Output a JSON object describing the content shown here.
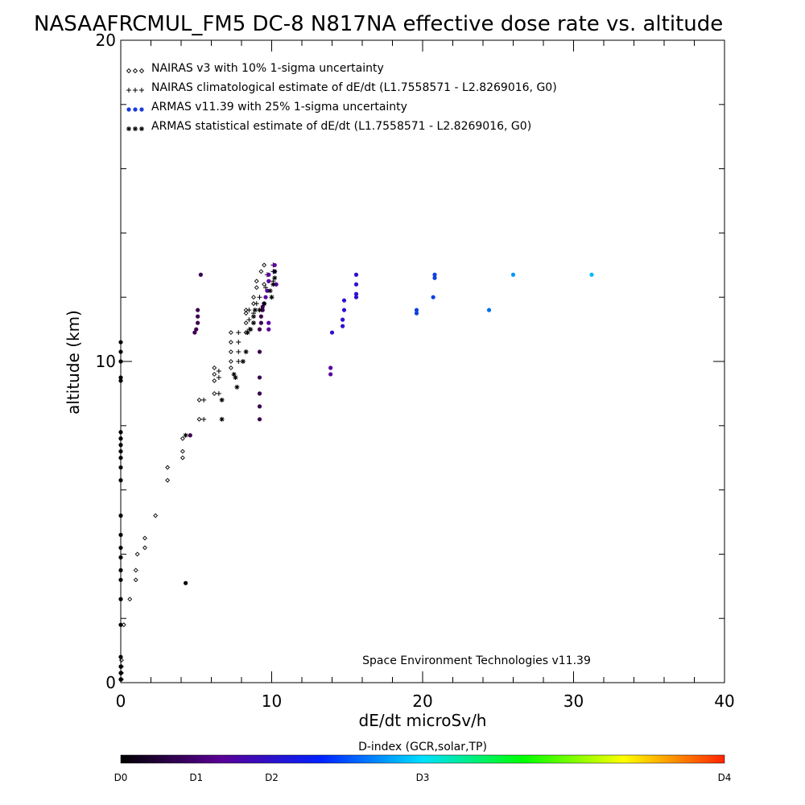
{
  "chart_data": {
    "type": "scatter",
    "title": "NASAAFRCMUL_FM5 DC-8   N817NA effective dose rate vs. altitude",
    "xlabel": "dE/dt microSv/h",
    "ylabel": "altitude (km)",
    "xlim": [
      0,
      40
    ],
    "ylim": [
      0,
      20
    ],
    "x_ticks": [
      "0",
      "10",
      "20",
      "30",
      "40"
    ],
    "y_ticks": [
      "0",
      "10",
      "20"
    ],
    "grid": false,
    "legend_position": "top-left",
    "legend": [
      {
        "marker": "diamond",
        "color": "#000000",
        "label": "NAIRAS v3 with 10% 1-sigma uncertainty"
      },
      {
        "marker": "plus",
        "color": "#000000",
        "label": "NAIRAS climatological estimate of dE/dt (L1.7558571 - L2.8269016, G0)"
      },
      {
        "marker": "dot",
        "color": "#1a3ad8",
        "label": "ARMAS v11.39 with 25% 1-sigma uncertainty"
      },
      {
        "marker": "asterisk",
        "color": "#000000",
        "label": "ARMAS statistical estimate of dE/dt (L1.7558571 - L2.8269016, G0)"
      }
    ],
    "annotation": "Space Environment Technologies v11.39",
    "colorbar": {
      "title": "D-index (GCR,solar,TP)",
      "labels": [
        {
          "text": "D0",
          "pos": 0.0
        },
        {
          "text": "D1",
          "pos": 0.125
        },
        {
          "text": "D2",
          "pos": 0.25
        },
        {
          "text": "D3",
          "pos": 0.5
        },
        {
          "text": "D4",
          "pos": 1.0
        }
      ],
      "stops": [
        "#000000",
        "#5a0096",
        "#0022ff",
        "#00e0ff",
        "#00ff00",
        "#ffff00",
        "#ff2200"
      ]
    },
    "series": [
      {
        "name": "NAIRAS v3 with 10% 1-sigma uncertainty",
        "marker": "diamond",
        "points": [
          [
            0.05,
            0.1
          ],
          [
            0.05,
            0.3
          ],
          [
            0.05,
            0.5
          ],
          [
            0.05,
            0.7
          ],
          [
            0.2,
            1.8
          ],
          [
            0.6,
            2.6
          ],
          [
            1.0,
            3.2
          ],
          [
            1.0,
            3.5
          ],
          [
            1.1,
            4.0
          ],
          [
            1.6,
            4.2
          ],
          [
            1.6,
            4.5
          ],
          [
            2.3,
            5.2
          ],
          [
            3.1,
            6.3
          ],
          [
            3.1,
            6.7
          ],
          [
            4.1,
            7.0
          ],
          [
            4.1,
            7.2
          ],
          [
            4.1,
            7.6
          ],
          [
            5.2,
            8.2
          ],
          [
            5.2,
            8.8
          ],
          [
            6.2,
            9.0
          ],
          [
            6.2,
            9.4
          ],
          [
            6.2,
            9.6
          ],
          [
            6.2,
            9.8
          ],
          [
            7.3,
            9.8
          ],
          [
            7.3,
            10.0
          ],
          [
            7.3,
            10.3
          ],
          [
            7.3,
            10.6
          ],
          [
            7.3,
            10.9
          ],
          [
            8.3,
            10.9
          ],
          [
            8.3,
            11.2
          ],
          [
            8.3,
            11.5
          ],
          [
            8.3,
            11.6
          ],
          [
            8.8,
            11.8
          ],
          [
            8.8,
            12.0
          ],
          [
            9.0,
            12.3
          ],
          [
            9.0,
            12.5
          ],
          [
            9.3,
            12.8
          ],
          [
            9.5,
            13.0
          ],
          [
            9.5,
            12.4
          ]
        ]
      },
      {
        "name": "NAIRAS climatological estimate of dE/dt (L1.7558571 - L2.8269016, G0)",
        "marker": "plus",
        "points": [
          [
            5.5,
            8.2
          ],
          [
            5.5,
            8.8
          ],
          [
            6.5,
            9.0
          ],
          [
            6.5,
            9.5
          ],
          [
            6.5,
            9.7
          ],
          [
            7.8,
            10.0
          ],
          [
            7.8,
            10.3
          ],
          [
            7.8,
            10.6
          ],
          [
            7.8,
            10.9
          ],
          [
            8.5,
            11.0
          ],
          [
            8.5,
            11.3
          ],
          [
            8.5,
            11.6
          ],
          [
            8.8,
            11.5
          ],
          [
            9.0,
            11.8
          ],
          [
            9.2,
            12.0
          ],
          [
            9.6,
            12.3
          ],
          [
            10.1,
            12.5
          ],
          [
            10.1,
            12.8
          ],
          [
            10.1,
            13.0
          ],
          [
            9.7,
            12.7
          ]
        ]
      },
      {
        "name": "ARMAS v11.39 with 25% 1-sigma uncertainty",
        "marker": "dot",
        "points": [
          [
            0.0,
            0.1
          ],
          [
            0.0,
            0.3
          ],
          [
            0.0,
            0.5
          ],
          [
            0.0,
            0.8
          ],
          [
            0.0,
            1.8
          ],
          [
            0.0,
            2.6
          ],
          [
            0.0,
            3.2
          ],
          [
            0.0,
            3.5
          ],
          [
            0.0,
            3.9
          ],
          [
            0.0,
            4.2
          ],
          [
            0.0,
            4.6
          ],
          [
            0.0,
            5.2
          ],
          [
            0.0,
            6.3
          ],
          [
            0.0,
            6.7
          ],
          [
            0.0,
            7.0
          ],
          [
            0.0,
            7.2
          ],
          [
            0.0,
            7.4
          ],
          [
            0.0,
            7.6
          ],
          [
            0.0,
            7.8
          ],
          [
            0.0,
            9.4
          ],
          [
            0.0,
            9.5
          ],
          [
            0.0,
            10.0
          ],
          [
            0.0,
            10.3
          ],
          [
            0.0,
            10.6
          ],
          [
            4.3,
            3.1
          ],
          [
            4.6,
            7.7
          ],
          [
            4.9,
            10.9
          ],
          [
            5.0,
            11.0
          ],
          [
            5.1,
            11.2
          ],
          [
            5.1,
            11.4
          ],
          [
            5.1,
            11.6
          ],
          [
            5.3,
            12.7
          ],
          [
            9.2,
            8.2
          ],
          [
            9.2,
            8.6
          ],
          [
            9.2,
            9.0
          ],
          [
            9.2,
            9.5
          ],
          [
            9.2,
            10.3
          ],
          [
            9.2,
            11.0
          ],
          [
            9.3,
            11.2
          ],
          [
            9.3,
            11.4
          ],
          [
            9.4,
            11.6
          ],
          [
            9.4,
            11.7
          ],
          [
            9.5,
            11.8
          ],
          [
            9.6,
            12.0
          ],
          [
            9.7,
            12.2
          ],
          [
            9.8,
            12.5
          ],
          [
            9.8,
            12.7
          ],
          [
            9.8,
            11.0
          ],
          [
            9.8,
            11.2
          ],
          [
            10.2,
            12.8
          ],
          [
            10.2,
            13.0
          ],
          [
            10.3,
            12.4
          ],
          [
            13.9,
            9.6
          ],
          [
            13.9,
            9.8
          ],
          [
            14.0,
            10.9
          ],
          [
            14.7,
            11.1
          ],
          [
            14.7,
            11.3
          ],
          [
            14.8,
            11.6
          ],
          [
            14.8,
            11.9
          ],
          [
            15.6,
            12.0
          ],
          [
            15.6,
            12.1
          ],
          [
            15.6,
            12.4
          ],
          [
            15.6,
            12.7
          ],
          [
            19.6,
            11.5
          ],
          [
            19.6,
            11.6
          ],
          [
            20.7,
            12.0
          ],
          [
            20.8,
            12.6
          ],
          [
            20.8,
            12.7
          ],
          [
            24.4,
            11.6
          ],
          [
            26.0,
            12.7
          ],
          [
            31.2,
            12.7
          ]
        ]
      },
      {
        "name": "ARMAS statistical estimate of dE/dt (L1.7558571 - L2.8269016, G0)",
        "marker": "asterisk",
        "points": [
          [
            4.3,
            7.7
          ],
          [
            6.7,
            8.2
          ],
          [
            6.7,
            8.8
          ],
          [
            7.5,
            9.6
          ],
          [
            7.6,
            9.5
          ],
          [
            7.7,
            9.2
          ],
          [
            8.1,
            10.0
          ],
          [
            8.3,
            10.3
          ],
          [
            8.4,
            10.9
          ],
          [
            8.6,
            11.0
          ],
          [
            8.8,
            11.2
          ],
          [
            8.8,
            11.4
          ],
          [
            8.9,
            11.6
          ],
          [
            9.2,
            11.6
          ],
          [
            9.5,
            11.8
          ],
          [
            10.0,
            12.0
          ],
          [
            10.1,
            12.4
          ],
          [
            10.2,
            12.6
          ],
          [
            10.2,
            12.8
          ],
          [
            9.9,
            12.2
          ]
        ]
      }
    ],
    "dot_colors_by_x": [
      {
        "x": 0,
        "color": "#000000"
      },
      {
        "x": 4.5,
        "color": "#3c0050"
      },
      {
        "x": 9.5,
        "color": "#5a00a0"
      },
      {
        "x": 14,
        "color": "#3010d0"
      },
      {
        "x": 19,
        "color": "#1040e0"
      },
      {
        "x": 24,
        "color": "#0070f0"
      },
      {
        "x": 26,
        "color": "#0098ff"
      },
      {
        "x": 31,
        "color": "#00b8ff"
      }
    ]
  }
}
